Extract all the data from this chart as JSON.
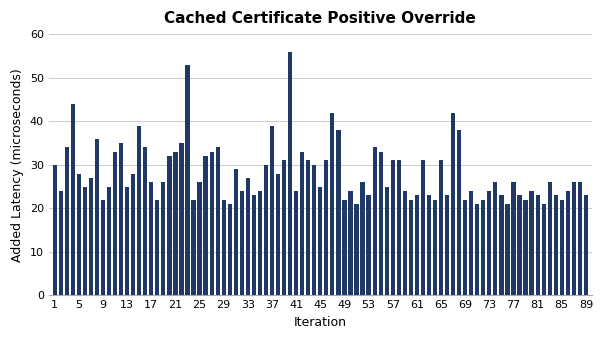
{
  "title": "Cached Certificate Positive Override",
  "xlabel": "Iteration",
  "ylabel": "Added Latency (microseconds)",
  "bar_color": "#1F3864",
  "background_color": "#ffffff",
  "ylim": [
    0,
    60
  ],
  "yticks": [
    0,
    10,
    20,
    30,
    40,
    50,
    60
  ],
  "values": [
    30,
    24,
    34,
    44,
    28,
    25,
    27,
    36,
    22,
    25,
    33,
    35,
    25,
    28,
    39,
    34,
    26,
    22,
    26,
    32,
    33,
    35,
    53,
    22,
    26,
    32,
    33,
    34,
    22,
    21,
    29,
    24,
    27,
    23,
    24,
    30,
    39,
    28,
    31,
    56,
    24,
    33,
    31,
    30,
    25,
    31,
    42,
    38,
    22,
    24,
    21,
    26,
    23,
    34,
    33,
    25,
    31,
    31,
    24,
    22,
    23,
    31,
    23,
    22,
    31,
    23,
    42,
    38,
    22,
    24,
    21,
    22,
    24,
    26,
    23,
    21,
    26,
    23,
    22,
    24,
    23,
    21,
    26,
    23,
    22,
    24,
    26,
    26,
    23
  ],
  "xtick_positions": [
    1,
    5,
    9,
    13,
    17,
    21,
    25,
    29,
    33,
    37,
    41,
    45,
    49,
    53,
    57,
    61,
    65,
    69,
    73,
    77,
    81,
    85,
    89
  ],
  "xtick_labels": [
    "1",
    "5",
    "9",
    "13",
    "17",
    "21",
    "25",
    "29",
    "33",
    "37",
    "41",
    "45",
    "49",
    "53",
    "57",
    "61",
    "65",
    "69",
    "73",
    "77",
    "81",
    "85",
    "89"
  ]
}
